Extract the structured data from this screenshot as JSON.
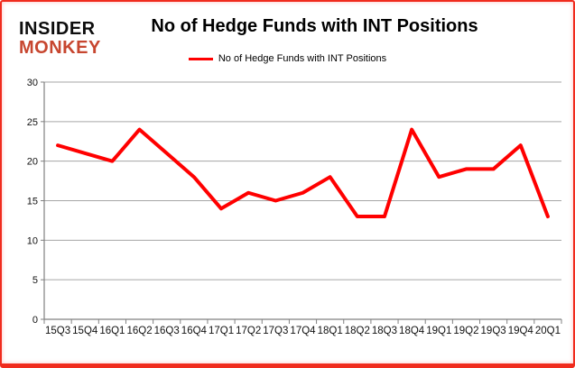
{
  "header": {
    "logo_line1": "INSIDER",
    "logo_line2": "MONKEY",
    "title": "No of Hedge Funds with INT Positions"
  },
  "legend": {
    "label": "No of Hedge Funds with INT Positions"
  },
  "chart_data": {
    "type": "line",
    "title": "No of Hedge Funds with INT Positions",
    "categories": [
      "15Q3",
      "15Q4",
      "16Q1",
      "16Q2",
      "16Q3",
      "16Q4",
      "17Q1",
      "17Q2",
      "17Q3",
      "17Q4",
      "18Q1",
      "18Q2",
      "18Q3",
      "18Q4",
      "19Q1",
      "19Q2",
      "19Q3",
      "19Q4",
      "20Q1"
    ],
    "series": [
      {
        "name": "No of Hedge Funds with INT Positions",
        "values": [
          22,
          21,
          20,
          24,
          21,
          18,
          14,
          16,
          15,
          16,
          18,
          13,
          13,
          24,
          18,
          19,
          19,
          22,
          13
        ]
      }
    ],
    "xlabel": "",
    "ylabel": "",
    "ylim": [
      0,
      30
    ],
    "ytick_step": 5,
    "grid": true,
    "legend_position": "top"
  },
  "colors": {
    "line_red": "#FF0000",
    "logo_red": "#C7462F",
    "frame_red": "#F02B1D",
    "gridline_gray": "#A6A6A6",
    "axis_gray": "#808080",
    "text_black": "#111111"
  }
}
